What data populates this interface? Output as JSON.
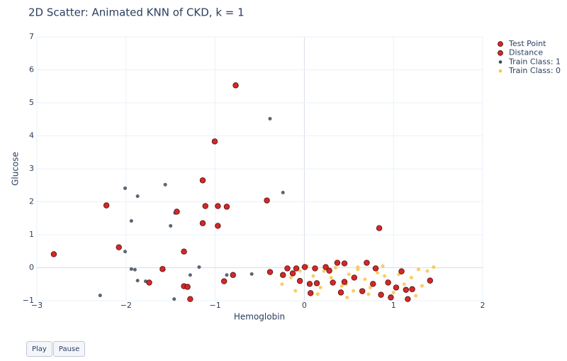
{
  "chart_data": {
    "type": "scatter",
    "title": "2D Scatter: Animated KNN of CKD, k = 1",
    "x_label": "Hemoglobin",
    "y_label": "Glucose",
    "xlim": [
      -3,
      2
    ],
    "ylim": [
      -1,
      7
    ],
    "xticks": [
      {
        "value": -3,
        "label": "−3"
      },
      {
        "value": -2,
        "label": "−2"
      },
      {
        "value": -1,
        "label": "−1"
      },
      0,
      1,
      2
    ],
    "yticks": [
      {
        "value": -1,
        "label": "−1"
      },
      0,
      1,
      2,
      3,
      4,
      5,
      6,
      7
    ],
    "grid": true,
    "legend": "top-right",
    "series": [
      {
        "name": "Test Point",
        "color": "#d62728",
        "x": [
          -0.05
        ],
        "values": [
          -0.4
        ]
      },
      {
        "name": "Distance",
        "color": "#d62728",
        "x": [
          -0.77,
          -1.005,
          -1.14,
          -2.22,
          -1.43,
          -1.11,
          -0.97,
          -0.87,
          -0.42,
          -1.14,
          -0.97,
          0.84,
          -2.08,
          -2.81,
          -1.35,
          -1.59,
          -0.385,
          -0.8,
          -0.9,
          -1.74,
          -1.35,
          -1.31,
          -1.28,
          -0.19,
          -0.09,
          0.005,
          0.12,
          0.24,
          0.37,
          0.45,
          0.7,
          0.8,
          1.09,
          -0.24,
          -0.13,
          0.06,
          0.14,
          0.32,
          0.45,
          0.56,
          0.65,
          0.77,
          0.94,
          1.03,
          1.14,
          1.21,
          1.41,
          0.07,
          0.41,
          0.86,
          0.97,
          1.16,
          0.28
        ],
        "values": [
          5.53,
          3.83,
          2.65,
          1.89,
          1.7,
          1.87,
          1.87,
          1.85,
          2.04,
          1.35,
          1.27,
          1.2,
          0.62,
          0.41,
          0.49,
          -0.04,
          -0.13,
          -0.22,
          -0.41,
          -0.45,
          -0.56,
          -0.58,
          -0.95,
          -0.02,
          -0.02,
          0.02,
          -0.02,
          0.02,
          0.15,
          0.13,
          0.15,
          -0.02,
          -0.11,
          -0.22,
          -0.17,
          -0.49,
          -0.47,
          -0.45,
          -0.43,
          -0.3,
          -0.71,
          -0.49,
          -0.45,
          -0.6,
          -0.67,
          -0.65,
          -0.39,
          -0.77,
          -0.75,
          -0.82,
          -0.9,
          -0.95,
          -0.09
        ]
      },
      {
        "name": "Train Class: 1",
        "color": "#3d4a5c",
        "x": [
          -0.385,
          -0.24,
          -1.56,
          -2.01,
          -1.87,
          -1.94,
          -1.45,
          -1.5,
          -2.01,
          -1.94,
          -1.9,
          -1.87,
          -1.78,
          -2.29,
          -1.46,
          -1.28,
          -1.18,
          -0.87,
          -0.59
        ],
        "values": [
          4.52,
          2.28,
          2.52,
          2.41,
          2.17,
          1.42,
          1.66,
          1.27,
          0.49,
          -0.04,
          -0.06,
          -0.39,
          -0.41,
          -0.84,
          -0.95,
          -0.22,
          0.02,
          -0.22,
          -0.19
        ]
      },
      {
        "name": "Train Class: 0",
        "color": "#f7c548",
        "x": [
          -0.25,
          -0.15,
          -0.05,
          0.03,
          0.1,
          0.18,
          0.22,
          0.3,
          0.35,
          0.42,
          0.5,
          0.55,
          0.6,
          0.68,
          0.74,
          0.82,
          0.88,
          0.93,
          1.0,
          1.06,
          1.12,
          1.2,
          1.25,
          1.32,
          1.38,
          1.45,
          0.15,
          0.48,
          0.72,
          1.28,
          -0.1,
          0.47,
          0.9,
          0.6
        ],
        "values": [
          -0.5,
          -0.3,
          -0.1,
          0.05,
          -0.25,
          -0.6,
          -0.1,
          -0.3,
          0.0,
          -0.55,
          -0.2,
          -0.7,
          -0.05,
          -0.35,
          -0.6,
          -0.15,
          0.05,
          -0.4,
          -0.75,
          -0.2,
          -0.5,
          -0.3,
          -0.85,
          -0.55,
          -0.1,
          0.02,
          -0.8,
          -0.9,
          -0.8,
          -0.05,
          -0.7,
          -0.5,
          -0.25,
          0.02
        ]
      }
    ],
    "buttons": [
      "Play",
      "Pause"
    ]
  }
}
